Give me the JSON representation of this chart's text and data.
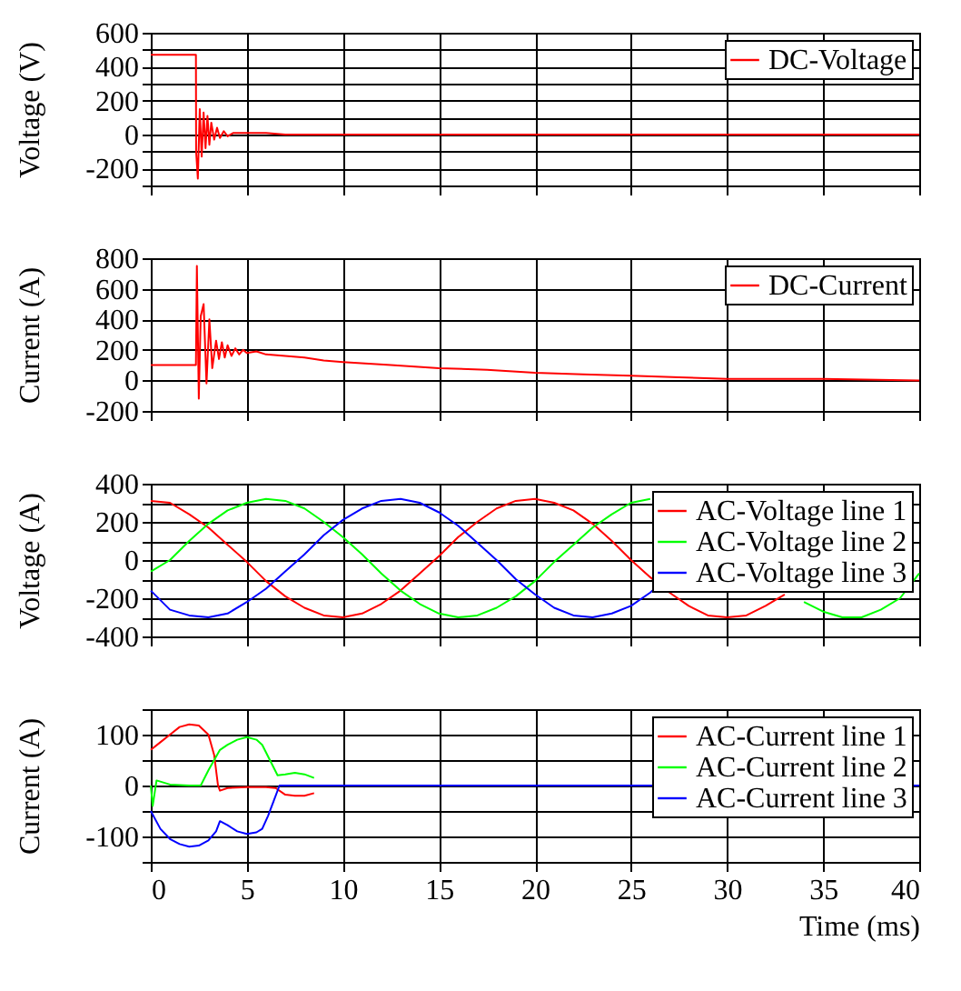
{
  "chart_data": [
    {
      "type": "line",
      "ylabel": "Voltage (V)",
      "xlim": [
        0,
        40
      ],
      "xticks": [
        0,
        5,
        10,
        15,
        20,
        25,
        30,
        35,
        40
      ],
      "ylim": [
        -300,
        600
      ],
      "yticks": [
        {
          "value": -300,
          "label": null
        },
        -200,
        {
          "value": -100,
          "label": null
        },
        0,
        {
          "value": 100,
          "label": null
        },
        200,
        {
          "value": 300,
          "label": null
        },
        400,
        {
          "value": 500,
          "label": null
        },
        600
      ],
      "grid": true,
      "legend": "top right",
      "tick_labels": "y",
      "series": [
        {
          "name": "DC-Voltage",
          "color": "#ff0000",
          "x": [
            0,
            2.35,
            2.36,
            2.45,
            2.55,
            2.65,
            2.75,
            2.85,
            2.95,
            3.05,
            3.15,
            3.3,
            3.45,
            3.6,
            3.8,
            4.0,
            4.3,
            4.7,
            5.2,
            6,
            7,
            10,
            15,
            20,
            25,
            30,
            35,
            40
          ],
          "values": [
            470,
            470,
            -100,
            -260,
            150,
            -130,
            130,
            -80,
            110,
            -60,
            70,
            -30,
            40,
            -20,
            20,
            -10,
            10,
            10,
            10,
            10,
            0,
            0,
            0,
            0,
            0,
            0,
            0,
            0
          ]
        }
      ]
    },
    {
      "type": "line",
      "ylabel": "Current (A)",
      "xlim": [
        0,
        40
      ],
      "xticks": [
        0,
        5,
        10,
        15,
        20,
        25,
        30,
        35,
        40
      ],
      "ylim": [
        -200,
        800
      ],
      "yticks": [
        -200,
        0,
        200,
        400,
        600,
        800
      ],
      "grid": true,
      "legend": "top right",
      "tick_labels": "y",
      "series": [
        {
          "name": "DC-Current",
          "color": "#ff0000",
          "x": [
            0,
            2.35,
            2.4,
            2.5,
            2.6,
            2.75,
            2.9,
            3.05,
            3.2,
            3.4,
            3.55,
            3.7,
            3.85,
            4.0,
            4.2,
            4.4,
            4.6,
            4.8,
            5.0,
            5.5,
            6,
            7,
            8,
            9,
            10,
            12.5,
            15,
            17.5,
            20,
            22.5,
            25,
            27.5,
            30,
            35,
            40
          ],
          "values": [
            100,
            100,
            750,
            -120,
            420,
            500,
            -20,
            400,
            80,
            260,
            140,
            250,
            150,
            230,
            160,
            210,
            170,
            200,
            180,
            190,
            170,
            160,
            150,
            130,
            120,
            100,
            80,
            70,
            50,
            40,
            30,
            20,
            10,
            10,
            0
          ]
        }
      ]
    },
    {
      "type": "line",
      "ylabel": "Voltage (A)",
      "xlim": [
        0,
        40
      ],
      "xticks": [
        0,
        5,
        10,
        15,
        20,
        25,
        30,
        35,
        40
      ],
      "ylim": [
        -400,
        400
      ],
      "yticks": [
        -400,
        {
          "value": -300,
          "label": null
        },
        -200,
        {
          "value": -100,
          "label": null
        },
        0,
        {
          "value": 100,
          "label": null
        },
        200,
        {
          "value": 300,
          "label": null
        },
        400
      ],
      "grid": true,
      "legend": "top right",
      "tick_labels": "y",
      "x": [
        0,
        1,
        2,
        3,
        4,
        5,
        6,
        7,
        8,
        9,
        10,
        11,
        12,
        13,
        14,
        15,
        16,
        17,
        18,
        19,
        20,
        21,
        22,
        23,
        24,
        25,
        26,
        27,
        28,
        29,
        30,
        31,
        32,
        33,
        34,
        35,
        36,
        37,
        38,
        39,
        40
      ],
      "series": [
        {
          "name": "AC-Voltage line 1",
          "color": "#ff0000",
          "values": [
            310,
            300,
            240,
            170,
            80,
            -10,
            -110,
            -190,
            -250,
            -290,
            -300,
            -280,
            -230,
            -160,
            -70,
            20,
            120,
            200,
            270,
            310,
            320,
            300,
            260,
            190,
            100,
            0,
            -90,
            -170,
            -240,
            -290,
            -300,
            -290,
            -240,
            -180,
            null,
            null,
            null,
            null,
            null,
            null,
            null
          ]
        },
        {
          "name": "AC-Voltage line 2",
          "color": "#00ff00",
          "values": [
            -60,
            0,
            100,
            190,
            260,
            300,
            320,
            310,
            270,
            200,
            120,
            30,
            -70,
            -160,
            -230,
            -280,
            -300,
            -290,
            -250,
            -190,
            -110,
            -10,
            80,
            170,
            240,
            300,
            320,
            null,
            null,
            null,
            null,
            null,
            null,
            null,
            -220,
            -270,
            -300,
            -300,
            -260,
            -200,
            -70
          ]
        },
        {
          "name": "AC-Voltage line 3",
          "color": "#0000ff",
          "values": [
            -160,
            -260,
            -290,
            -300,
            -280,
            -220,
            -150,
            -60,
            30,
            130,
            210,
            270,
            310,
            320,
            300,
            250,
            180,
            90,
            0,
            -100,
            -180,
            -250,
            -290,
            -300,
            -280,
            -240,
            -170,
            -80,
            null,
            null,
            null,
            null,
            null,
            null,
            null,
            null,
            null,
            null,
            null,
            null,
            null
          ]
        }
      ]
    },
    {
      "type": "line",
      "xlabel": "Time (ms)",
      "ylabel": "Current (A)",
      "xlim": [
        0,
        40
      ],
      "xticks": [
        0,
        5,
        10,
        15,
        20,
        25,
        30,
        35,
        40
      ],
      "ylim": [
        -150,
        150
      ],
      "yticks": [
        {
          "value": -150,
          "label": null
        },
        -100,
        {
          "value": -50,
          "label": null
        },
        0,
        {
          "value": 50,
          "label": null
        },
        100,
        {
          "value": 150,
          "label": null
        }
      ],
      "grid": true,
      "legend": "top right",
      "series": [
        {
          "name": "AC-Current line 1",
          "color": "#ff0000",
          "x": [
            0,
            0.5,
            1,
            1.5,
            2,
            2.5,
            3,
            3.3,
            3.5,
            3.6,
            4,
            5,
            6,
            6.5,
            7,
            7.5,
            8,
            8.5
          ],
          "values": [
            70,
            85,
            100,
            115,
            120,
            118,
            100,
            60,
            0,
            -10,
            -5,
            -3,
            -3,
            -5,
            -18,
            -20,
            -20,
            -15
          ]
        },
        {
          "name": "AC-Current line 2",
          "color": "#00ff00",
          "x": [
            0,
            0.1,
            0.3,
            1,
            2,
            2.6,
            3,
            3.6,
            4,
            4.5,
            5,
            5.5,
            5.8,
            6.2,
            6.6,
            7,
            7.5,
            8,
            8.5
          ],
          "values": [
            0,
            -40,
            10,
            2,
            0,
            0,
            30,
            70,
            80,
            90,
            95,
            90,
            80,
            50,
            20,
            22,
            25,
            22,
            15
          ]
        },
        {
          "name": "AC-Current line 3",
          "color": "#0000ff",
          "x": [
            0,
            0.5,
            1,
            1.5,
            2,
            2.5,
            3,
            3.4,
            3.6,
            4,
            4.5,
            5,
            5.5,
            5.8,
            6.1,
            6.4,
            6.7,
            7,
            10,
            15,
            20,
            25,
            40
          ],
          "values": [
            -50,
            -85,
            -105,
            -115,
            -120,
            -118,
            -108,
            -90,
            -70,
            -78,
            -90,
            -95,
            -92,
            -85,
            -60,
            -30,
            0,
            0,
            0,
            0,
            0,
            0,
            0
          ]
        }
      ]
    }
  ]
}
